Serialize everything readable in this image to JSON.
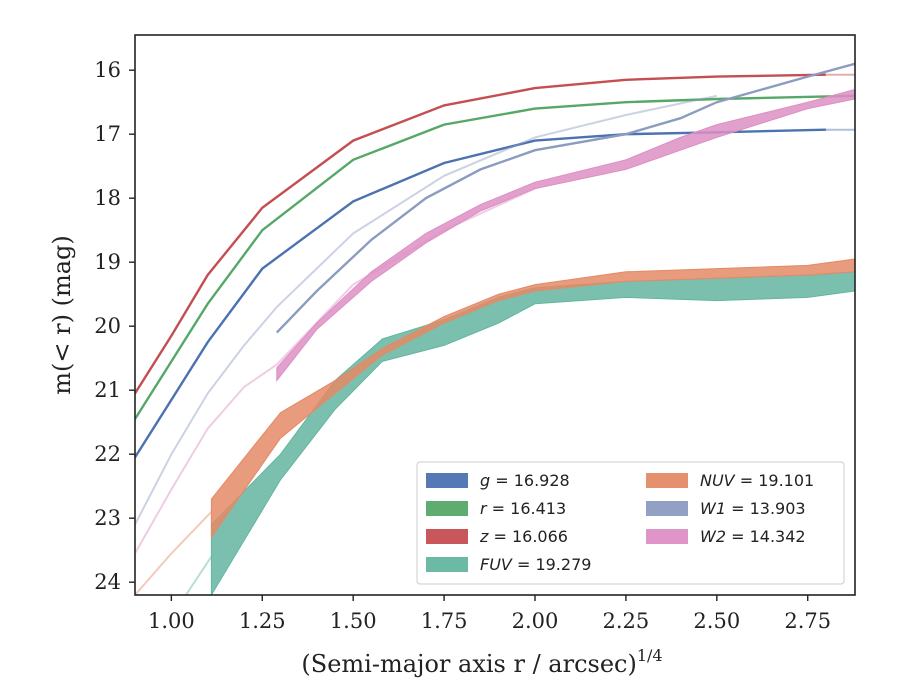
{
  "chart_data": {
    "type": "line",
    "xlabel": "(Semi-major axis r / arcsec)",
    "xlabel_power": "1/4",
    "ylabel": "m(< r) (mag)",
    "xlim": [
      0.9,
      2.88
    ],
    "ylim": [
      24.2,
      15.45
    ],
    "y_inverted": true,
    "x_ticks": [
      1.0,
      1.25,
      1.5,
      1.75,
      2.0,
      2.25,
      2.5,
      2.75
    ],
    "x_tick_labels": [
      "1.00",
      "1.25",
      "1.50",
      "1.75",
      "2.00",
      "2.25",
      "2.50",
      "2.75"
    ],
    "y_ticks": [
      16,
      17,
      18,
      19,
      20,
      21,
      22,
      23,
      24
    ],
    "y_tick_labels": [
      "16",
      "17",
      "18",
      "19",
      "20",
      "21",
      "22",
      "23",
      "24"
    ],
    "grid": false,
    "legend_position": "lower-right",
    "series": [
      {
        "name": "g = 16.928",
        "kind": "line",
        "color": "#4c72b0",
        "x": [
          0.9,
          1.0,
          1.1,
          1.25,
          1.5,
          1.75,
          2.0,
          2.25,
          2.5,
          2.8
        ],
        "y": [
          22.05,
          21.15,
          20.25,
          19.1,
          18.05,
          17.45,
          17.1,
          17.0,
          16.97,
          16.93
        ],
        "faded_x": [
          2.8,
          2.88
        ],
        "faded_y": [
          16.93,
          16.93
        ]
      },
      {
        "name": "r = 16.413",
        "kind": "line",
        "color": "#55a868",
        "x": [
          0.9,
          1.0,
          1.1,
          1.25,
          1.5,
          1.75,
          2.0,
          2.25,
          2.5,
          2.88
        ],
        "y": [
          21.45,
          20.55,
          19.65,
          18.5,
          17.4,
          16.85,
          16.6,
          16.5,
          16.45,
          16.4
        ]
      },
      {
        "name": "z = 16.066",
        "kind": "line",
        "color": "#c44e52",
        "x": [
          0.9,
          1.0,
          1.1,
          1.25,
          1.5,
          1.75,
          2.0,
          2.25,
          2.5,
          2.8
        ],
        "y": [
          21.05,
          20.15,
          19.2,
          18.15,
          17.1,
          16.55,
          16.28,
          16.15,
          16.1,
          16.07
        ],
        "faded_x": [
          2.8,
          2.88
        ],
        "faded_y": [
          16.07,
          16.07
        ]
      },
      {
        "name": "FUV = 19.279",
        "kind": "band",
        "color": "#64b5a0",
        "x": [
          1.11,
          1.3,
          1.45,
          1.58,
          1.75,
          1.9,
          2.0,
          2.25,
          2.5,
          2.75,
          2.88
        ],
        "y_upper": [
          23.1,
          22.0,
          20.85,
          20.2,
          19.9,
          19.55,
          19.4,
          19.3,
          19.25,
          19.2,
          19.15
        ],
        "y_lower": [
          24.2,
          22.4,
          21.3,
          20.55,
          20.3,
          19.95,
          19.65,
          19.55,
          19.6,
          19.55,
          19.45
        ],
        "faded_x": [
          1.04,
          1.11
        ],
        "faded_y": [
          24.2,
          23.6
        ]
      },
      {
        "name": "NUV = 19.101",
        "kind": "band",
        "color": "#e48a66",
        "x": [
          1.11,
          1.3,
          1.45,
          1.58,
          1.75,
          1.9,
          2.0,
          2.25,
          2.5,
          2.75,
          2.88
        ],
        "y_upper": [
          22.7,
          21.35,
          20.85,
          20.35,
          19.85,
          19.5,
          19.35,
          19.15,
          19.1,
          19.05,
          18.95
        ],
        "y_lower": [
          23.3,
          21.75,
          21.05,
          20.45,
          19.95,
          19.6,
          19.45,
          19.3,
          19.25,
          19.2,
          19.15
        ],
        "faded_x": [
          0.9,
          1.0,
          1.11
        ],
        "faded_y": [
          24.2,
          23.55,
          22.9
        ]
      },
      {
        "name": "W1 = 13.903",
        "kind": "line",
        "color": "#8c9cc0",
        "x": [
          1.29,
          1.4,
          1.55,
          1.7,
          1.85,
          2.0,
          2.25,
          2.4,
          2.5,
          2.75,
          2.88
        ],
        "y": [
          20.1,
          19.45,
          18.65,
          18.0,
          17.55,
          17.25,
          17.0,
          16.75,
          16.5,
          16.1,
          15.9
        ],
        "faded_x": [
          0.9,
          1.0,
          1.1,
          1.2,
          1.29,
          1.5,
          1.75,
          2.0,
          2.25,
          2.5
        ],
        "faded_y": [
          23.1,
          22.0,
          21.05,
          20.3,
          19.7,
          18.55,
          17.65,
          17.05,
          16.7,
          16.4
        ]
      },
      {
        "name": "W2 = 14.342",
        "kind": "band",
        "color": "#dd8fc4",
        "x": [
          1.29,
          1.4,
          1.55,
          1.7,
          1.85,
          2.0,
          2.25,
          2.4,
          2.5,
          2.75,
          2.88
        ],
        "y_upper": [
          20.65,
          19.95,
          19.15,
          18.55,
          18.1,
          17.75,
          17.4,
          17.05,
          16.85,
          16.5,
          16.3
        ],
        "y_lower": [
          20.85,
          20.05,
          19.3,
          18.7,
          18.2,
          17.85,
          17.55,
          17.25,
          17.05,
          16.6,
          16.45
        ],
        "faded_x": [
          0.9,
          1.0,
          1.1,
          1.2,
          1.29,
          1.5,
          1.75,
          2.0
        ],
        "faded_y": [
          23.55,
          22.55,
          21.6,
          20.95,
          20.6,
          19.35,
          18.5,
          17.85
        ]
      }
    ],
    "legend": [
      {
        "name_var": "g",
        "value": "= 16.928",
        "color": "#4c72b0"
      },
      {
        "name_var": "r",
        "value": "= 16.413",
        "color": "#55a868"
      },
      {
        "name_var": "z",
        "value": "= 16.066",
        "color": "#c44e52"
      },
      {
        "name_var": "FUV",
        "value": "= 19.279",
        "color": "#64b5a0"
      },
      {
        "name_var": "NUV",
        "value": "= 19.101",
        "color": "#e48a66"
      },
      {
        "name_var": "W1",
        "value": "= 13.903",
        "color": "#8c9cc0"
      },
      {
        "name_var": "W2",
        "value": "= 14.342",
        "color": "#dd8fc4"
      }
    ]
  }
}
